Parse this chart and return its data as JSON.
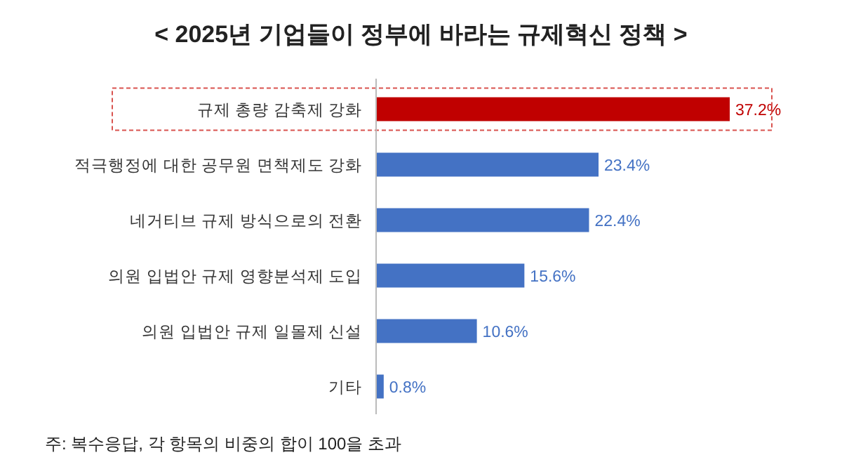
{
  "chart_data": {
    "type": "bar",
    "orientation": "horizontal",
    "title": "< 2025년 기업들이 정부에 바라는 규제혁신 정책 >",
    "categories": [
      "규제 총량 감축제 강화",
      "적극행정에 대한 공무원 면책제도 강화",
      "네거티브 규제 방식으로의 전환",
      "의원 입법안 규제 영향분석제 도입",
      "의원 입법안 규제 일몰제 신설",
      "기타"
    ],
    "values": [
      37.2,
      23.4,
      22.4,
      15.6,
      10.6,
      0.8
    ],
    "colors": [
      "#c00000",
      "#4472c4",
      "#4472c4",
      "#4472c4",
      "#4472c4",
      "#4472c4"
    ],
    "value_labels": [
      "37.2%",
      "23.4%",
      "22.4%",
      "15.6%",
      "10.6%",
      "0.8%"
    ],
    "annotations": [
      "주: 복수응답, 각 항목의 비중의 합이 100을 초과"
    ]
  }
}
